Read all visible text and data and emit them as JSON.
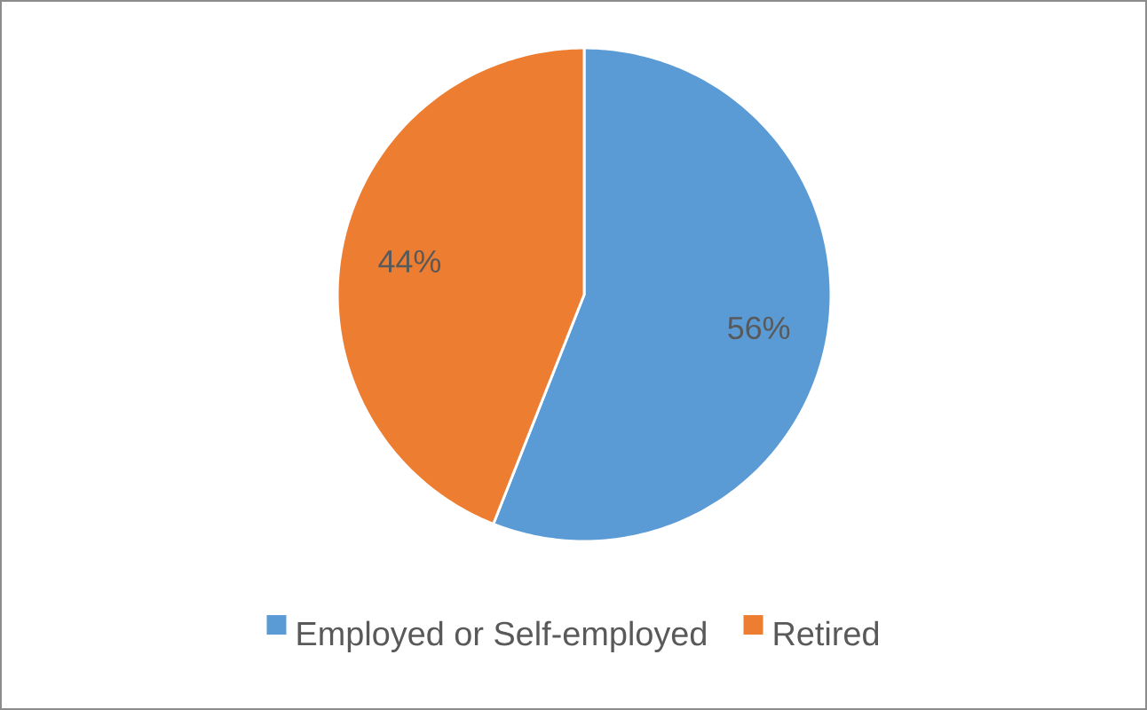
{
  "chart_data": {
    "type": "pie",
    "categories": [
      "Employed or Self-employed",
      "Retired"
    ],
    "values": [
      56,
      44
    ],
    "colors": [
      "#5b9bd5",
      "#ed7d31"
    ],
    "value_labels": [
      "56%",
      "44%"
    ],
    "legend": "bottom"
  }
}
